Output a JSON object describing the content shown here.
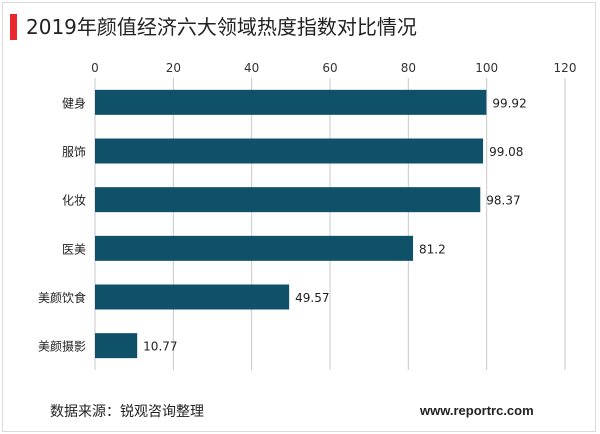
{
  "title": "2019年颜值经济六大领域热度指数对比情况",
  "source": "数据来源：锐观咨询整理",
  "website": "www.reportrc.com",
  "colors": {
    "bar": "#0f5168",
    "accent": "#e8262d",
    "grid": "#c8c8c8"
  },
  "chart_data": {
    "type": "bar",
    "orientation": "horizontal",
    "title": "2019年颜值经济六大领域热度指数对比情况",
    "categories": [
      "健身",
      "服饰",
      "化妆",
      "医美",
      "美颜饮食",
      "美颜摄影"
    ],
    "values": [
      99.92,
      99.08,
      98.37,
      81.2,
      49.57,
      10.77
    ],
    "value_labels": [
      "99.92",
      "99.08",
      "98.37",
      "81.2",
      "49.57",
      "10.77"
    ],
    "xlim": [
      0,
      120
    ],
    "x_ticks": [
      0,
      20,
      40,
      60,
      80,
      100,
      120
    ],
    "axis_position": "top",
    "grid": true,
    "legend": "none"
  }
}
